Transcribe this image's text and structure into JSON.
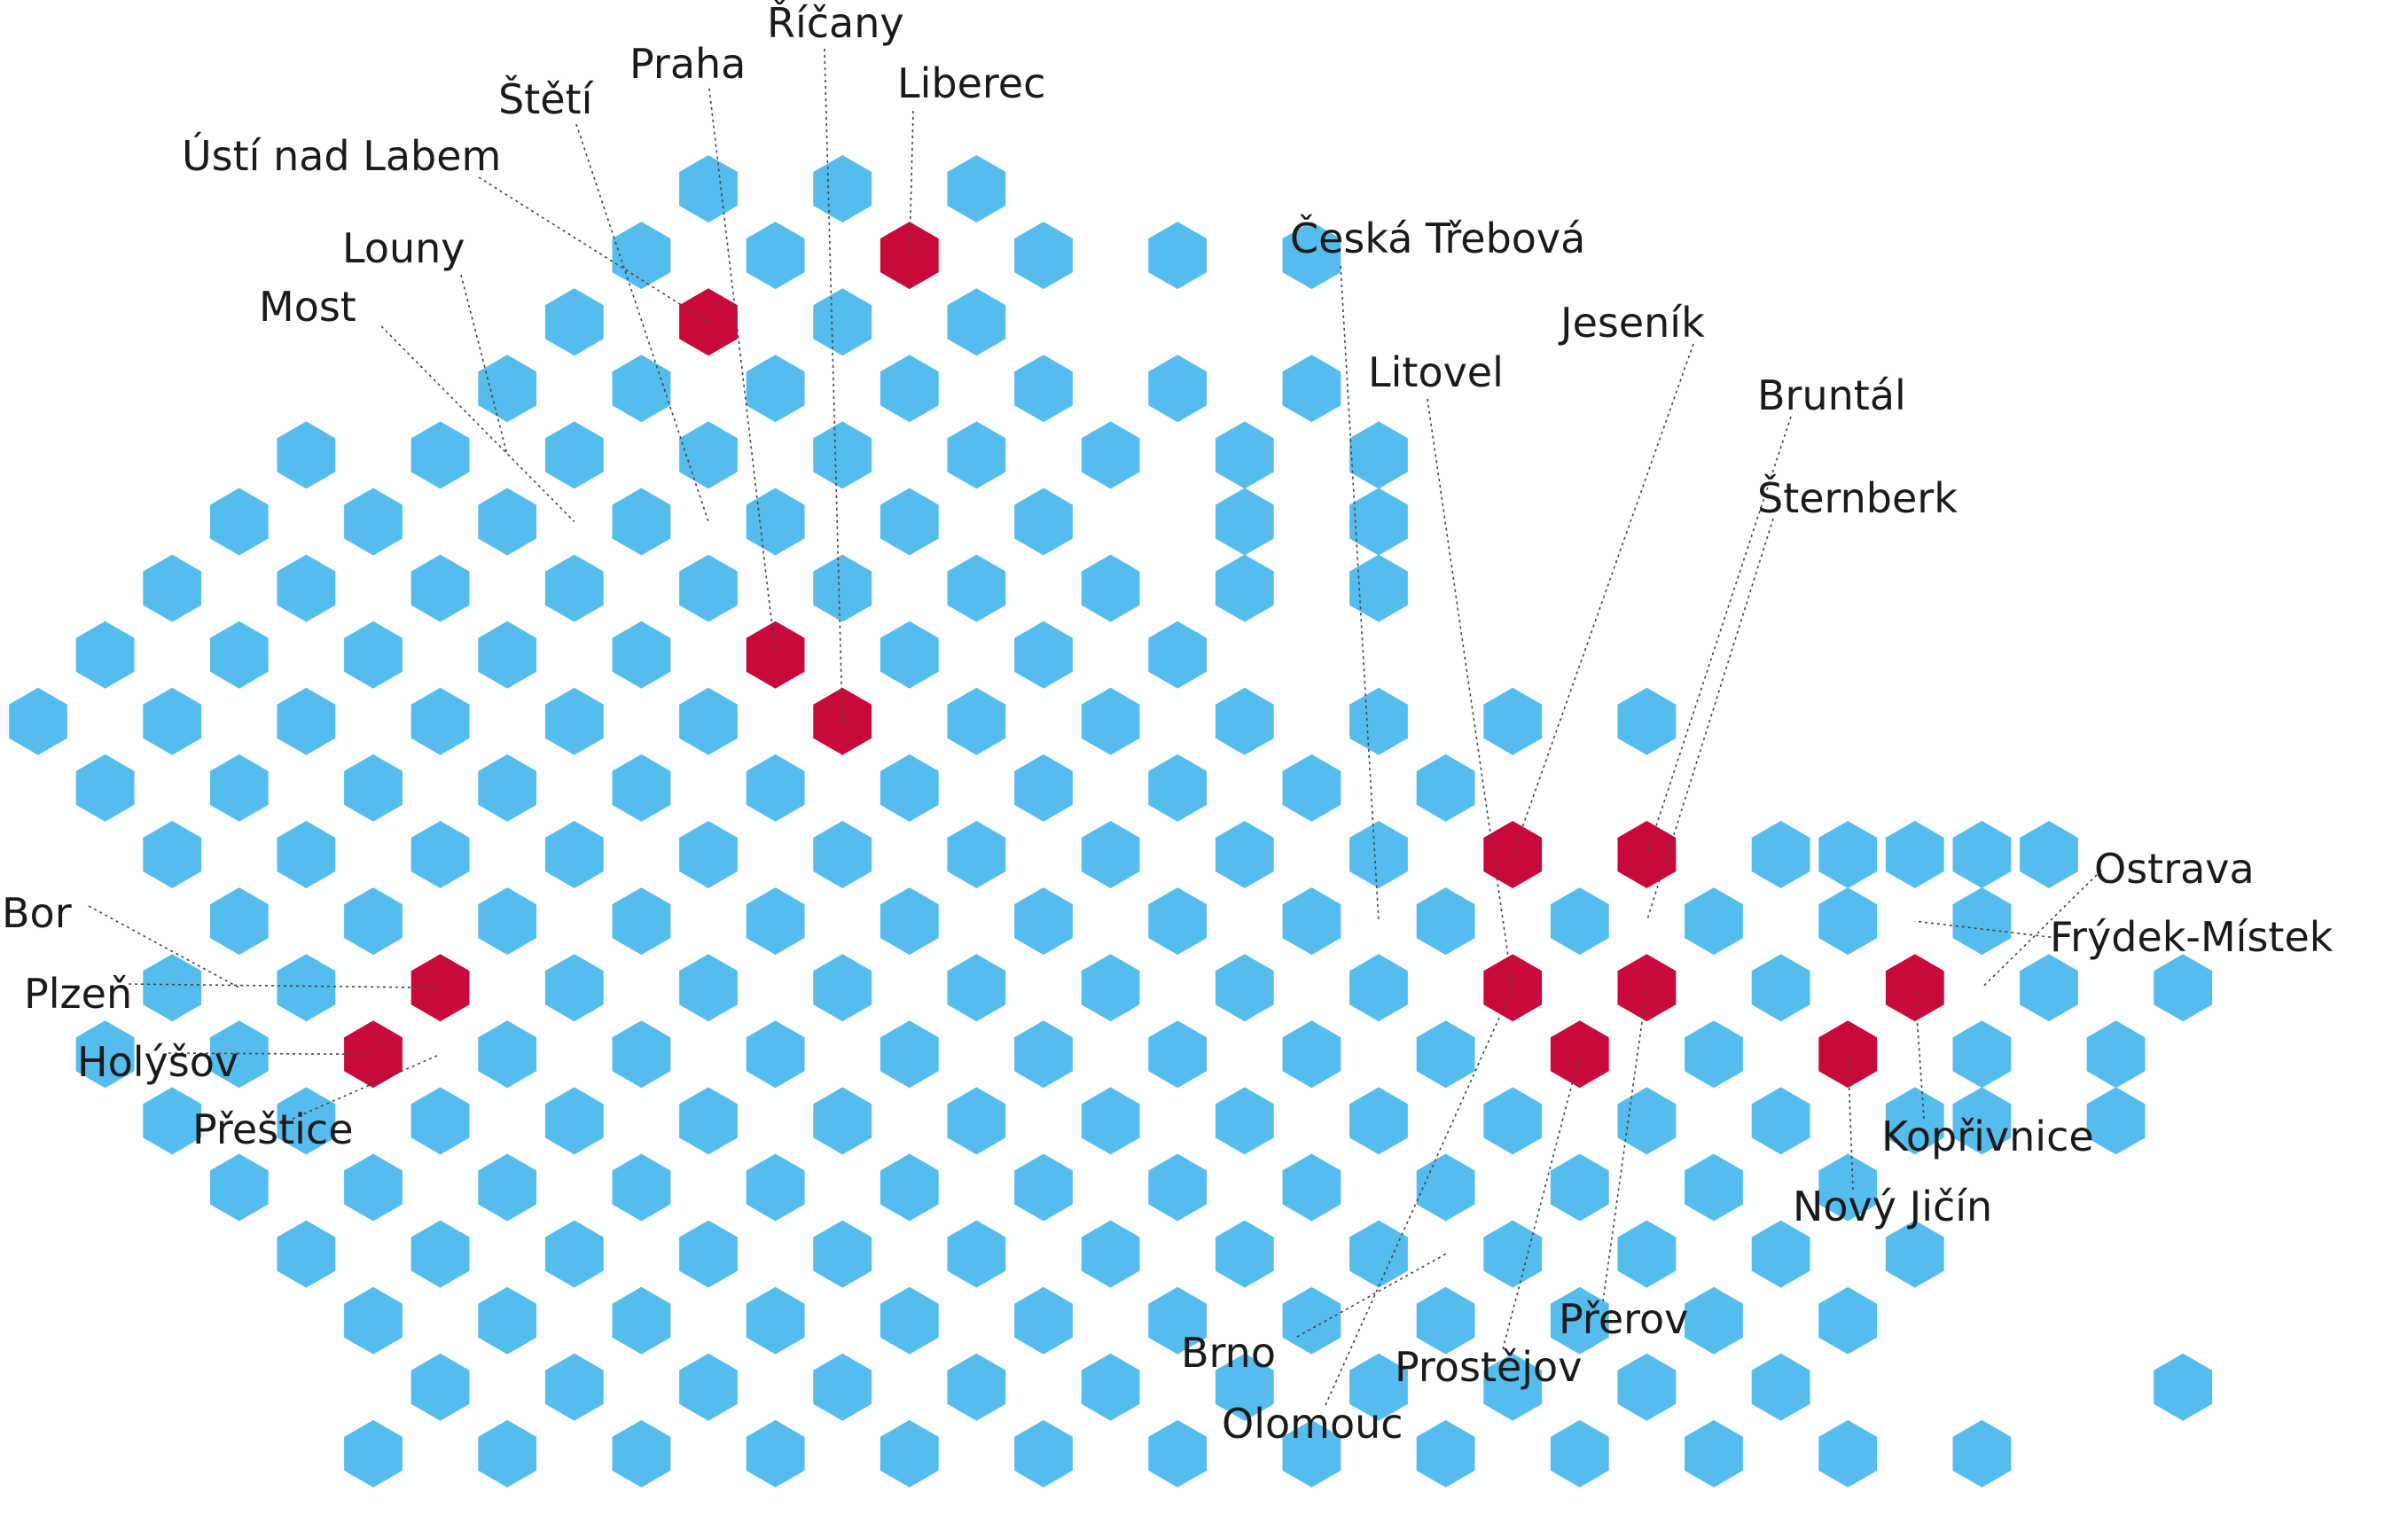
{
  "colors": {
    "hex_fill": "#55bdee",
    "highlight_fill": "#c9093a",
    "label_text": "#1a1a1a",
    "leader_line": "#444444",
    "background": "#ffffff"
  },
  "legend_note": "",
  "cities": [
    {
      "id": "most",
      "name": "Most"
    },
    {
      "id": "louny",
      "name": "Louny"
    },
    {
      "id": "usti",
      "name": "Ústí nad Labem"
    },
    {
      "id": "steti",
      "name": "Štětí"
    },
    {
      "id": "praha",
      "name": "Praha"
    },
    {
      "id": "ricany",
      "name": "Říčany"
    },
    {
      "id": "liberec",
      "name": "Liberec"
    },
    {
      "id": "ceska-trebova",
      "name": "Česká Třebová"
    },
    {
      "id": "litovel",
      "name": "Litovel"
    },
    {
      "id": "jesenik",
      "name": "Jeseník"
    },
    {
      "id": "bruntal",
      "name": "Bruntál"
    },
    {
      "id": "sternberk",
      "name": "Šternberk"
    },
    {
      "id": "ostrava",
      "name": "Ostrava"
    },
    {
      "id": "frydek-mistek",
      "name": "Frýdek-Místek"
    },
    {
      "id": "koprivnice",
      "name": "Kopřivnice"
    },
    {
      "id": "novy-jicin",
      "name": "Nový Jičín"
    },
    {
      "id": "prerov",
      "name": "Přerov"
    },
    {
      "id": "prostejov",
      "name": "Prostějov"
    },
    {
      "id": "olomouc",
      "name": "Olomouc"
    },
    {
      "id": "brno",
      "name": "Brno"
    },
    {
      "id": "bor",
      "name": "Bor"
    },
    {
      "id": "plzen",
      "name": "Plzeň"
    },
    {
      "id": "holysov",
      "name": "Holýšov"
    },
    {
      "id": "prestice",
      "name": "Přeštice"
    }
  ]
}
